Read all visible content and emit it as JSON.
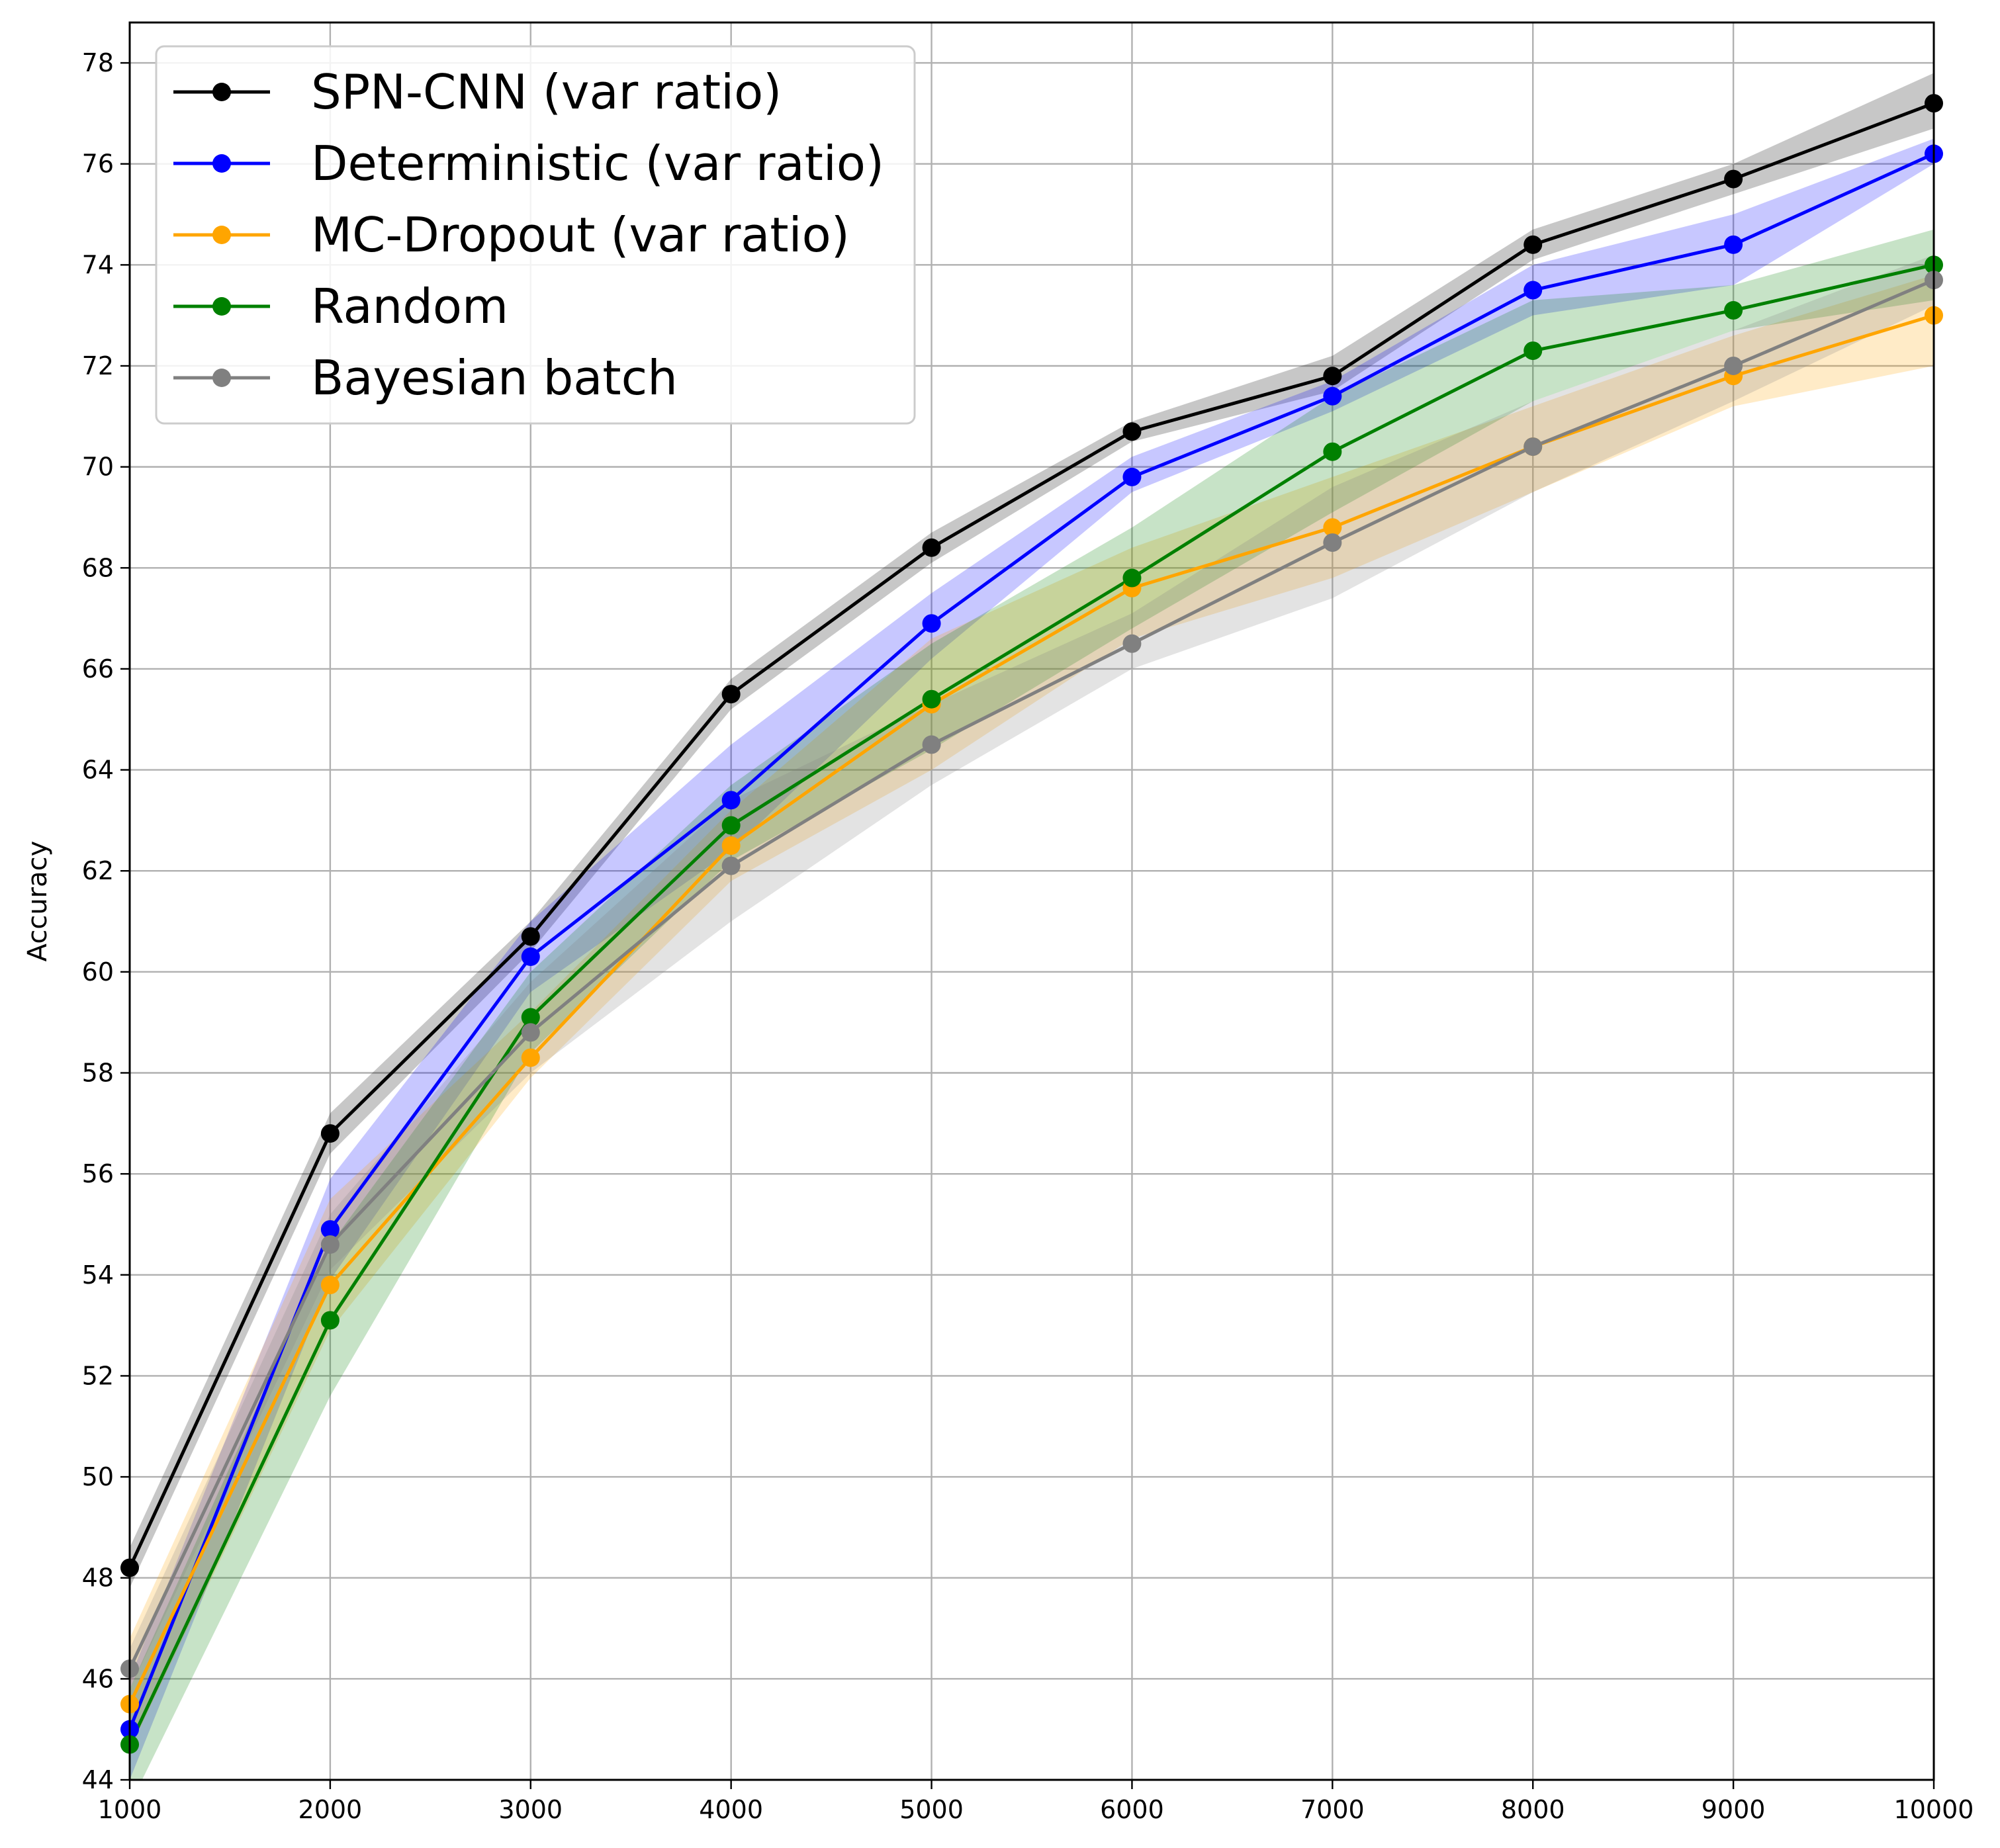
{
  "chart_data": {
    "type": "line",
    "title": "",
    "xlabel": "",
    "ylabel": "Accuracy",
    "xlim": [
      1000,
      10000
    ],
    "ylim": [
      44,
      78.8
    ],
    "x": [
      1000,
      2000,
      3000,
      4000,
      5000,
      6000,
      7000,
      8000,
      9000,
      10000
    ],
    "xticks": [
      1000,
      2000,
      3000,
      4000,
      5000,
      6000,
      7000,
      8000,
      9000,
      10000
    ],
    "yticks": [
      44,
      46,
      48,
      50,
      52,
      54,
      56,
      58,
      60,
      62,
      64,
      66,
      68,
      70,
      72,
      74,
      76,
      78
    ],
    "grid": true,
    "legend_position": "top-left",
    "series": [
      {
        "name": "SPN-CNN (var ratio)",
        "color": "#000000",
        "values": [
          48.2,
          56.8,
          60.7,
          65.5,
          68.4,
          70.7,
          71.8,
          74.4,
          75.7,
          77.2
        ],
        "band_lower": [
          47.8,
          56.4,
          60.4,
          65.2,
          68.1,
          70.5,
          71.5,
          74.1,
          75.4,
          76.7
        ],
        "band_upper": [
          48.6,
          57.2,
          61.0,
          65.8,
          68.7,
          70.9,
          72.2,
          74.7,
          76.0,
          77.8
        ]
      },
      {
        "name": "Deterministic (var ratio)",
        "color": "#0000ff",
        "values": [
          45.0,
          54.9,
          60.3,
          63.4,
          66.9,
          69.8,
          71.4,
          73.5,
          74.4,
          76.2
        ],
        "band_lower": [
          44.0,
          53.9,
          59.6,
          62.4,
          66.2,
          69.5,
          71.1,
          73.0,
          73.6,
          76.0
        ],
        "band_upper": [
          46.0,
          55.9,
          61.0,
          64.5,
          67.5,
          70.2,
          71.7,
          74.0,
          75.0,
          76.5
        ]
      },
      {
        "name": "MC-Dropout (var ratio)",
        "color": "#ffa500",
        "values": [
          45.5,
          53.8,
          58.3,
          62.5,
          65.3,
          67.6,
          68.8,
          70.4,
          71.8,
          73.0
        ],
        "band_lower": [
          44.6,
          52.9,
          57.9,
          61.8,
          64.0,
          66.6,
          67.8,
          69.5,
          71.2,
          72.0
        ],
        "band_upper": [
          46.8,
          55.5,
          59.2,
          63.2,
          66.6,
          68.4,
          69.8,
          71.2,
          72.6,
          73.8
        ]
      },
      {
        "name": "Random",
        "color": "#008000",
        "values": [
          44.7,
          53.1,
          59.1,
          62.9,
          65.4,
          67.8,
          70.3,
          72.3,
          73.1,
          74.0
        ],
        "band_lower": [
          43.5,
          51.6,
          58.4,
          62.2,
          64.4,
          66.8,
          69.1,
          71.3,
          72.7,
          73.3
        ],
        "band_upper": [
          45.8,
          54.6,
          60.0,
          63.7,
          66.5,
          68.8,
          71.4,
          73.3,
          73.6,
          74.7
        ]
      },
      {
        "name": "Bayesian batch",
        "color": "#808080",
        "values": [
          46.2,
          54.6,
          58.8,
          62.1,
          64.5,
          66.5,
          68.5,
          70.4,
          72.0,
          73.7
        ],
        "band_lower": [
          45.8,
          54.1,
          58.0,
          61.0,
          63.7,
          66.0,
          67.4,
          69.5,
          71.3,
          73.2
        ],
        "band_upper": [
          46.6,
          55.2,
          59.8,
          63.4,
          65.3,
          67.1,
          69.6,
          71.3,
          72.7,
          74.2
        ]
      }
    ]
  }
}
